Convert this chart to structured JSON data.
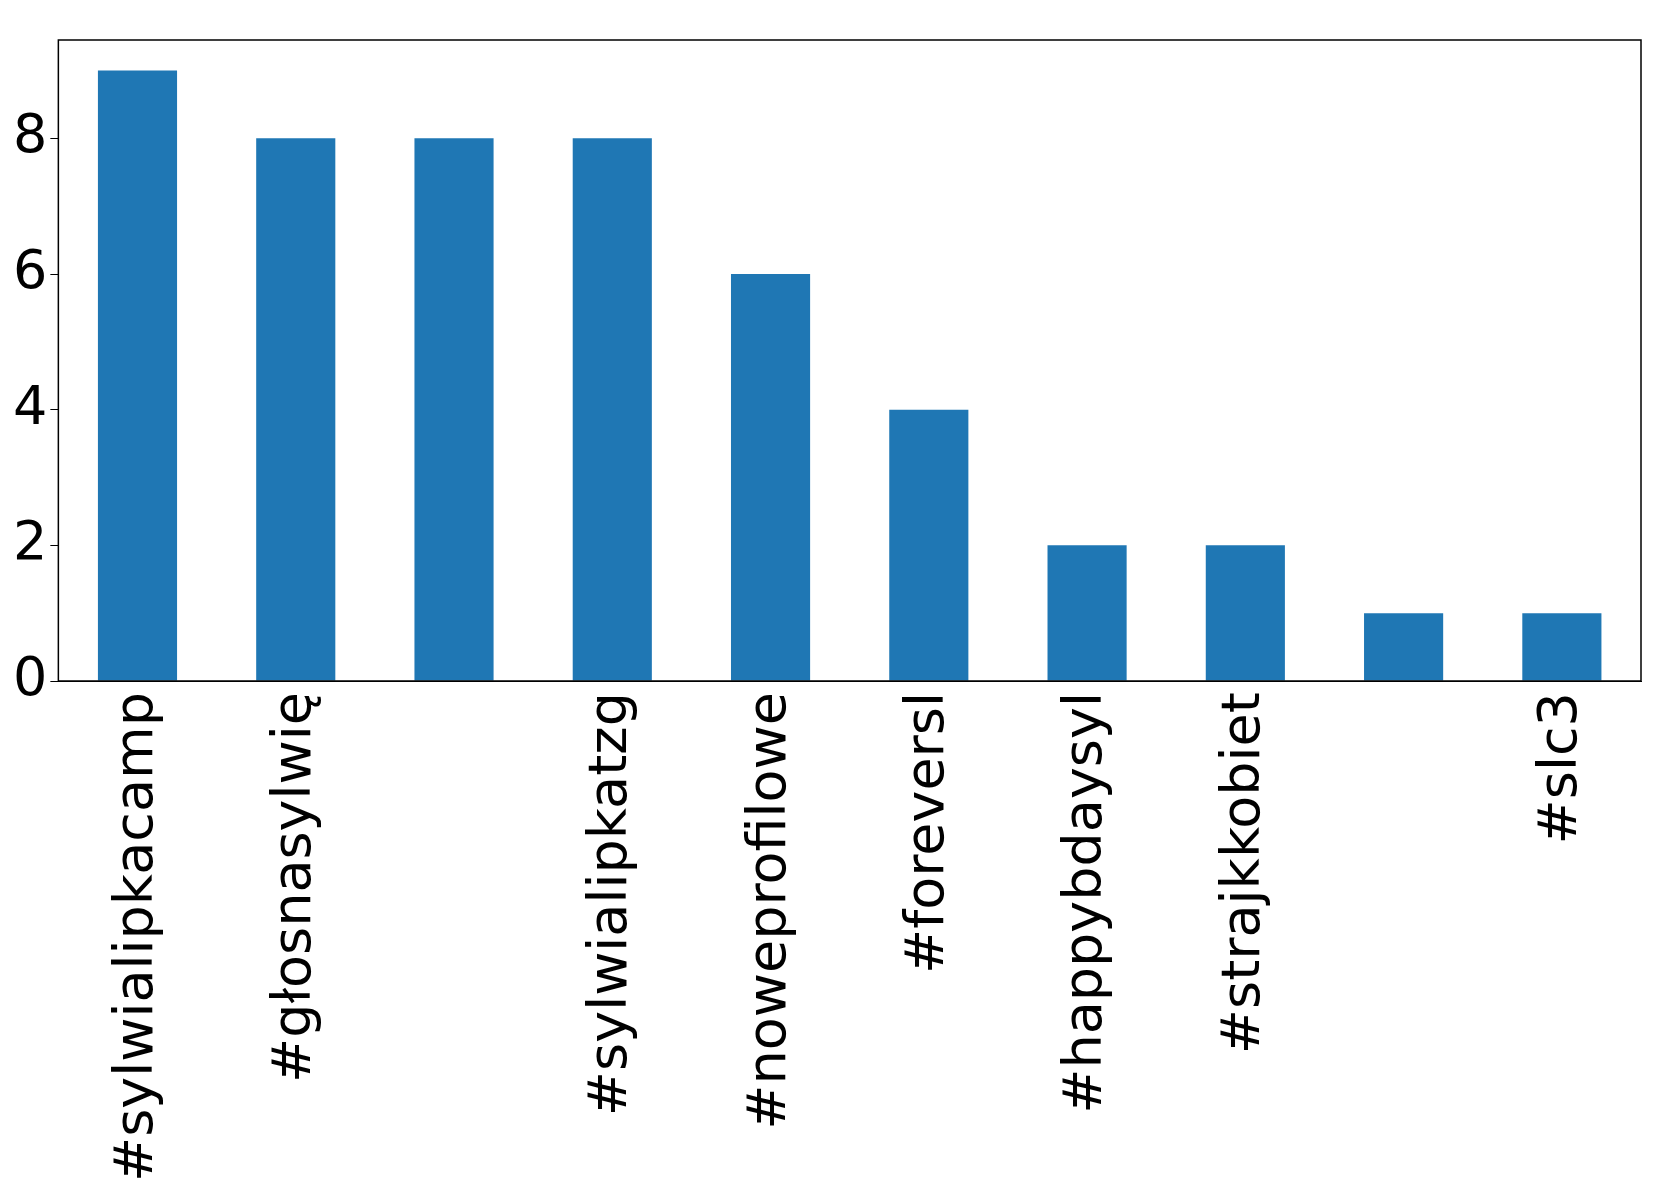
{
  "chart_data": {
    "type": "bar",
    "categories": [
      "#sylwialipkacamp",
      "#głosnasylwię",
      null,
      "#sylwialipkatzg",
      "#noweprofilowe",
      "#foreversl",
      "#happybdaysyl",
      "#strajkkobiet",
      null,
      "#slc3"
    ],
    "values": [
      9,
      8,
      8,
      8,
      6,
      4,
      2,
      2,
      1,
      1
    ],
    "color": "#1f77b4",
    "ylim": [
      0,
      9.45
    ],
    "yticks": [
      0,
      2,
      4,
      6,
      8
    ],
    "grid": false,
    "legend": false
  }
}
